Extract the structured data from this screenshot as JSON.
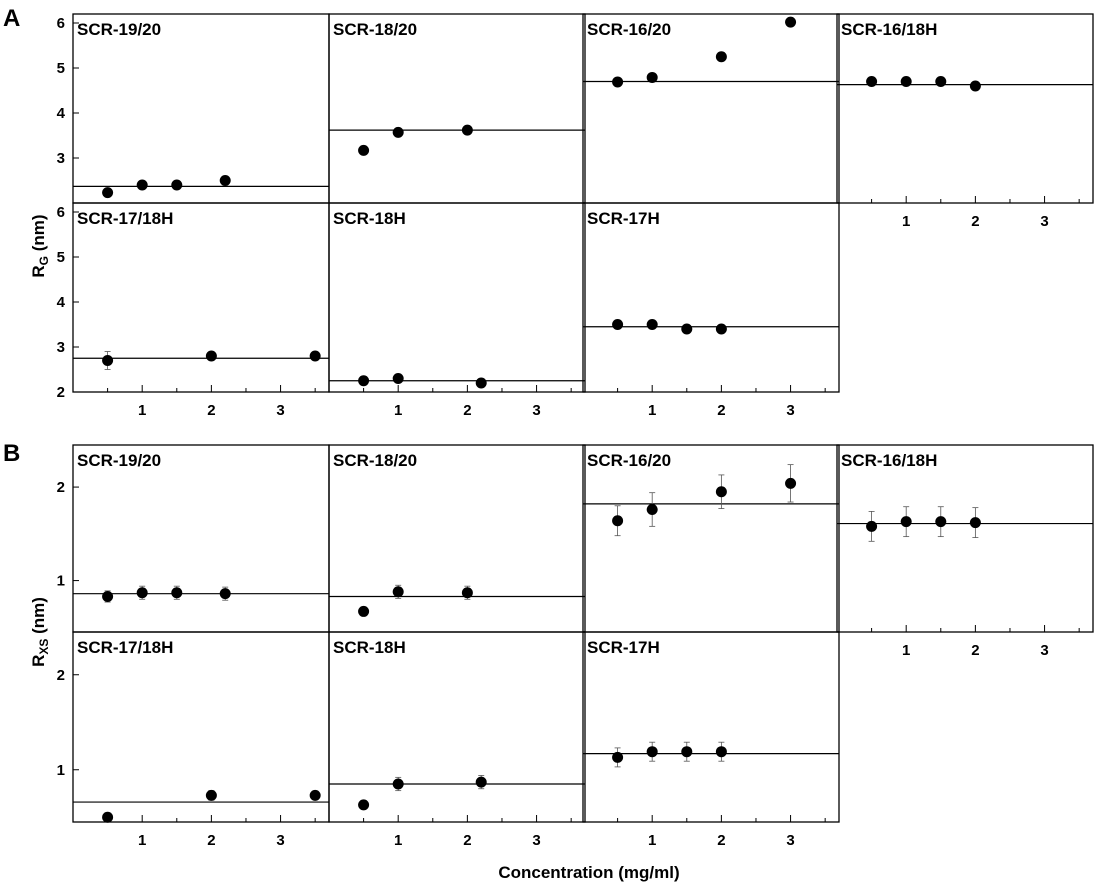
{
  "figure": {
    "panel_A_label": "A",
    "panel_B_label": "B",
    "xlabel": "Concentration (mg/ml)",
    "ylabel_A_main": "R",
    "ylabel_A_sub": "G",
    "ylabel_A_unit": " (nm)",
    "ylabel_B_main": "R",
    "ylabel_B_sub": "XS",
    "ylabel_B_unit": " (nm)"
  },
  "chart_data": [
    {
      "type": "scatter",
      "panel": "A",
      "title": "SCR-19/20",
      "ylabel": "RG (nm)",
      "xlabel": "Concentration (mg/ml)",
      "xlim": [
        0,
        3.7
      ],
      "ylim": [
        2,
        6.2
      ],
      "yticks": [
        3,
        4,
        5,
        6
      ],
      "x": [
        0.5,
        1.0,
        1.5,
        2.2
      ],
      "y": [
        2.23,
        2.4,
        2.4,
        2.5
      ],
      "err": [
        0,
        0,
        0,
        0
      ],
      "fit_y": 2.37
    },
    {
      "type": "scatter",
      "panel": "A",
      "title": "SCR-18/20",
      "ylabel": "RG (nm)",
      "xlabel": "Concentration (mg/ml)",
      "xlim": [
        0,
        3.7
      ],
      "ylim": [
        2,
        6.2
      ],
      "yticks": [],
      "x": [
        0.5,
        1.0,
        2.0
      ],
      "y": [
        3.17,
        3.57,
        3.62
      ],
      "err": [
        0,
        0,
        0
      ],
      "fit_y": 3.62
    },
    {
      "type": "scatter",
      "panel": "A",
      "title": "SCR-16/20",
      "ylabel": "RG (nm)",
      "xlabel": "Concentration (mg/ml)",
      "xlim": [
        0,
        3.7
      ],
      "ylim": [
        2,
        6.2
      ],
      "yticks": [],
      "x": [
        0.5,
        1.0,
        2.0,
        3.0
      ],
      "y": [
        4.69,
        4.79,
        5.25,
        6.02
      ],
      "err": [
        0,
        0,
        0,
        0
      ],
      "fit_y": 4.7
    },
    {
      "type": "scatter",
      "panel": "A",
      "title": "SCR-16/18H",
      "ylabel": "RG (nm)",
      "xlabel": "Concentration (mg/ml)",
      "xlim": [
        0,
        3.7
      ],
      "ylim": [
        2,
        6.2
      ],
      "yticks": [],
      "xticks": [
        1,
        2,
        3
      ],
      "x": [
        0.5,
        1.0,
        1.5,
        2.0
      ],
      "y": [
        4.7,
        4.7,
        4.7,
        4.6
      ],
      "err": [
        0,
        0,
        0,
        0
      ],
      "fit_y": 4.63
    },
    {
      "type": "scatter",
      "panel": "A",
      "title": "SCR-17/18H",
      "ylabel": "RG (nm)",
      "xlabel": "Concentration (mg/ml)",
      "xlim": [
        0,
        3.7
      ],
      "ylim": [
        2,
        6.2
      ],
      "yticks": [
        2,
        3,
        4,
        5,
        6
      ],
      "xticks": [
        1,
        2,
        3
      ],
      "x": [
        0.5,
        2.0,
        3.5
      ],
      "y": [
        2.7,
        2.8,
        2.8
      ],
      "err": [
        0.2,
        0,
        0
      ],
      "fit_y": 2.75
    },
    {
      "type": "scatter",
      "panel": "A",
      "title": "SCR-18H",
      "ylabel": "RG (nm)",
      "xlabel": "Concentration (mg/ml)",
      "xlim": [
        0,
        3.7
      ],
      "ylim": [
        2,
        6.2
      ],
      "yticks": [],
      "xticks": [
        1,
        2,
        3
      ],
      "x": [
        0.5,
        1.0,
        2.2
      ],
      "y": [
        2.25,
        2.3,
        2.2
      ],
      "err": [
        0,
        0,
        0
      ],
      "fit_y": 2.25
    },
    {
      "type": "scatter",
      "panel": "A",
      "title": "SCR-17H",
      "ylabel": "RG (nm)",
      "xlabel": "Concentration (mg/ml)",
      "xlim": [
        0,
        3.7
      ],
      "ylim": [
        2,
        6.2
      ],
      "yticks": [],
      "xticks": [
        1,
        2,
        3
      ],
      "x": [
        0.5,
        1.0,
        1.5,
        2.0
      ],
      "y": [
        3.5,
        3.5,
        3.4,
        3.4
      ],
      "err": [
        0,
        0,
        0,
        0
      ],
      "fit_y": 3.45
    },
    {
      "type": "scatter",
      "panel": "B",
      "title": "SCR-19/20",
      "ylabel": "RXS (nm)",
      "xlabel": "Concentration (mg/ml)",
      "xlim": [
        0,
        3.7
      ],
      "ylim": [
        0.45,
        2.45
      ],
      "yticks": [
        1,
        2
      ],
      "x": [
        0.5,
        1.0,
        1.5,
        2.2
      ],
      "y": [
        0.83,
        0.87,
        0.87,
        0.86
      ],
      "err": [
        0.06,
        0.07,
        0.07,
        0.07
      ],
      "fit_y": 0.86
    },
    {
      "type": "scatter",
      "panel": "B",
      "title": "SCR-18/20",
      "ylabel": "RXS (nm)",
      "xlabel": "Concentration (mg/ml)",
      "xlim": [
        0,
        3.7
      ],
      "ylim": [
        0.45,
        2.45
      ],
      "yticks": [],
      "x": [
        0.5,
        1.0,
        2.0
      ],
      "y": [
        0.67,
        0.88,
        0.87
      ],
      "err": [
        0,
        0.07,
        0.07
      ],
      "fit_y": 0.83
    },
    {
      "type": "scatter",
      "panel": "B",
      "title": "SCR-16/20",
      "ylabel": "RXS (nm)",
      "xlabel": "Concentration (mg/ml)",
      "xlim": [
        0,
        3.7
      ],
      "ylim": [
        0.45,
        2.45
      ],
      "yticks": [],
      "x": [
        0.5,
        1.0,
        2.0,
        3.0
      ],
      "y": [
        1.64,
        1.76,
        1.95,
        2.04
      ],
      "err": [
        0.16,
        0.18,
        0.18,
        0.2
      ],
      "fit_y": 1.82
    },
    {
      "type": "scatter",
      "panel": "B",
      "title": "SCR-16/18H",
      "ylabel": "RXS (nm)",
      "xlabel": "Concentration (mg/ml)",
      "xlim": [
        0,
        3.7
      ],
      "ylim": [
        0.45,
        2.45
      ],
      "yticks": [],
      "xticks": [
        1,
        2,
        3
      ],
      "x": [
        0.5,
        1.0,
        1.5,
        2.0
      ],
      "y": [
        1.58,
        1.63,
        1.63,
        1.62
      ],
      "err": [
        0.16,
        0.16,
        0.16,
        0.16
      ],
      "fit_y": 1.61
    },
    {
      "type": "scatter",
      "panel": "B",
      "title": "SCR-17/18H",
      "ylabel": "RXS (nm)",
      "xlabel": "Concentration (mg/ml)",
      "xlim": [
        0,
        3.7
      ],
      "ylim": [
        0.45,
        2.45
      ],
      "yticks": [
        1,
        2
      ],
      "xticks": [
        1,
        2,
        3
      ],
      "x": [
        0.5,
        2.0,
        3.5
      ],
      "y": [
        0.5,
        0.73,
        0.73
      ],
      "err": [
        0,
        0.05,
        0
      ],
      "fit_y": 0.66
    },
    {
      "type": "scatter",
      "panel": "B",
      "title": "SCR-18H",
      "ylabel": "RXS (nm)",
      "xlabel": "Concentration (mg/ml)",
      "xlim": [
        0,
        3.7
      ],
      "ylim": [
        0.45,
        2.45
      ],
      "yticks": [],
      "xticks": [
        1,
        2,
        3
      ],
      "x": [
        0.5,
        1.0,
        2.2
      ],
      "y": [
        0.63,
        0.85,
        0.87
      ],
      "err": [
        0,
        0.07,
        0.07
      ],
      "fit_y": 0.85
    },
    {
      "type": "scatter",
      "panel": "B",
      "title": "SCR-17H",
      "ylabel": "RXS (nm)",
      "xlabel": "Concentration (mg/ml)",
      "xlim": [
        0,
        3.7
      ],
      "ylim": [
        0.45,
        2.45
      ],
      "yticks": [],
      "xticks": [
        1,
        2,
        3
      ],
      "x": [
        0.5,
        1.0,
        1.5,
        2.0
      ],
      "y": [
        1.13,
        1.19,
        1.19,
        1.19
      ],
      "err": [
        0.1,
        0.1,
        0.1,
        0.1
      ],
      "fit_y": 1.17
    }
  ]
}
